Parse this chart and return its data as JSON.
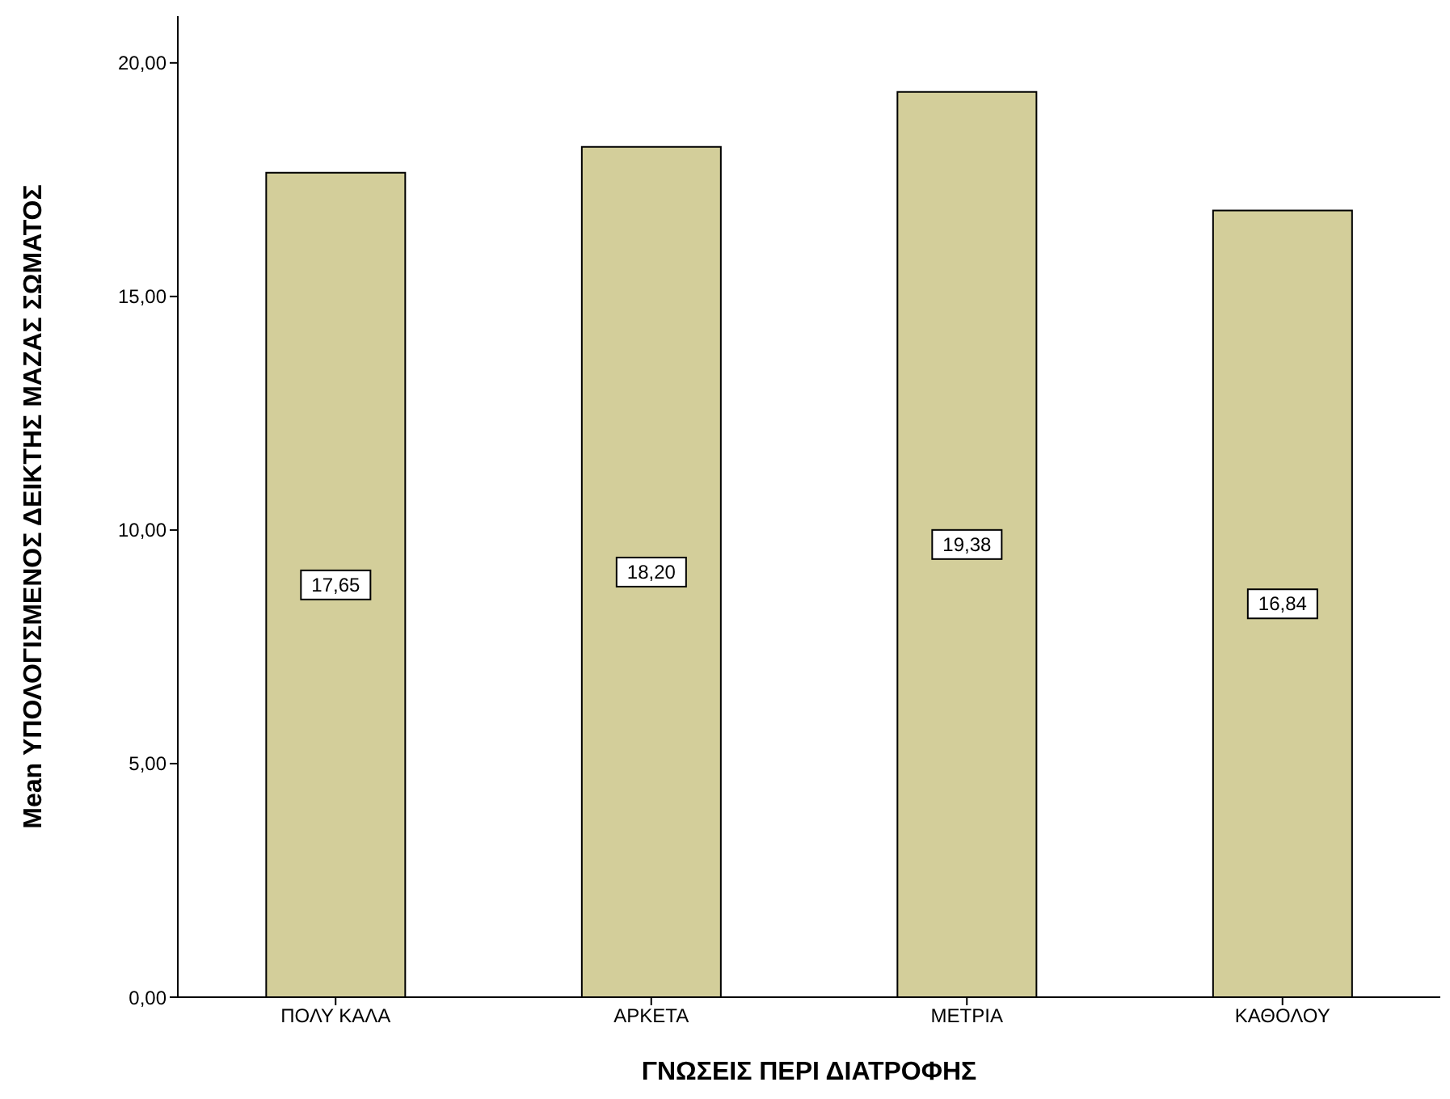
{
  "chart_data": {
    "type": "bar",
    "xlabel": "ΓΝΩΣΕΙΣ ΠΕΡΙ ΔΙΑΤΡΟΦΗΣ",
    "ylabel": "Mean ΥΠΟΛΟΓΙΣΜΕΝΟΣ ΔΕΙΚΤΗΣ ΜΑΖΑΣ ΣΩΜΑΤΟΣ",
    "categories": [
      "ΠΟΛΥ ΚΑΛΑ",
      "ΑΡΚΕΤΑ",
      "ΜΕΤΡΙΑ",
      "ΚΑΘΟΛΟΥ"
    ],
    "values": [
      17.65,
      18.2,
      19.38,
      16.84
    ],
    "value_labels": [
      "17,65",
      "18,20",
      "19,38",
      "16,84"
    ],
    "color": "#d3ce9a",
    "ylim": [
      0,
      21
    ],
    "yticks": [
      {
        "value": 0,
        "label": "0,00"
      },
      {
        "value": 5,
        "label": "5,00"
      },
      {
        "value": 10,
        "label": "10,00"
      },
      {
        "value": 15,
        "label": "15,00"
      },
      {
        "value": 20,
        "label": "20,00"
      }
    ],
    "grid": false,
    "legend": false
  }
}
